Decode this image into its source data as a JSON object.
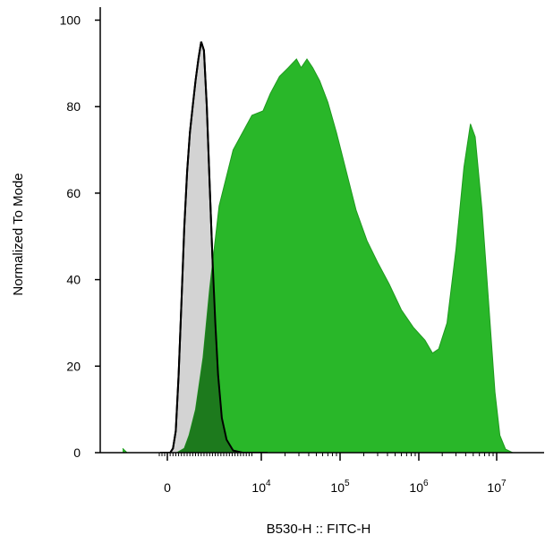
{
  "chart_data": {
    "type": "area",
    "title": "",
    "xlabel": "B530-H :: FITC-H",
    "ylabel": "Normalized To Mode",
    "x_scale": "biexponential",
    "ylim": [
      0,
      103
    ],
    "y_ticks": [
      0,
      20,
      40,
      60,
      80,
      100
    ],
    "x_tick_labels": [
      {
        "value": 0,
        "base": "0",
        "exp": ""
      },
      {
        "value": 10000,
        "base": "10",
        "exp": "4"
      },
      {
        "value": 100000,
        "base": "10",
        "exp": "5"
      },
      {
        "value": 1000000,
        "base": "10",
        "exp": "6"
      },
      {
        "value": 10000000,
        "base": "10",
        "exp": "7"
      }
    ],
    "grid": false,
    "legend": "none",
    "series": [
      {
        "role": "control",
        "fill": "#d3d3d3",
        "stroke": "#000000",
        "points": [
          [
            -800,
            0
          ],
          [
            300,
            0
          ],
          [
            600,
            1
          ],
          [
            900,
            5
          ],
          [
            1200,
            18
          ],
          [
            1500,
            35
          ],
          [
            1800,
            52
          ],
          [
            2100,
            65
          ],
          [
            2400,
            74
          ],
          [
            2700,
            80
          ],
          [
            3000,
            86
          ],
          [
            3300,
            91
          ],
          [
            3600,
            95
          ],
          [
            3900,
            93
          ],
          [
            4200,
            80
          ],
          [
            4500,
            62
          ],
          [
            4800,
            45
          ],
          [
            5100,
            30
          ],
          [
            5400,
            18
          ],
          [
            5800,
            8
          ],
          [
            6300,
            3
          ],
          [
            7000,
            0.5
          ],
          [
            8000,
            0
          ],
          [
            12000,
            0
          ]
        ]
      },
      {
        "role": "stained",
        "fill": "#22b522",
        "stroke": "#1f9a1f",
        "points": [
          [
            -5000,
            1
          ],
          [
            -4500,
            0
          ],
          [
            1000,
            0
          ],
          [
            1800,
            1
          ],
          [
            2300,
            4
          ],
          [
            3000,
            10
          ],
          [
            3800,
            22
          ],
          [
            4500,
            38
          ],
          [
            5500,
            57
          ],
          [
            7000,
            70
          ],
          [
            9000,
            78
          ],
          [
            10500,
            79
          ],
          [
            13000,
            83
          ],
          [
            17000,
            87
          ],
          [
            22000,
            89
          ],
          [
            28000,
            91
          ],
          [
            32000,
            89
          ],
          [
            38000,
            91
          ],
          [
            45000,
            89
          ],
          [
            55000,
            86
          ],
          [
            70000,
            81
          ],
          [
            90000,
            74
          ],
          [
            120000,
            65
          ],
          [
            160000,
            56
          ],
          [
            220000,
            49
          ],
          [
            300000,
            44
          ],
          [
            420000,
            39
          ],
          [
            600000,
            33
          ],
          [
            850000,
            29
          ],
          [
            1200000,
            26
          ],
          [
            1500000,
            23
          ],
          [
            1800000,
            24
          ],
          [
            2300000,
            30
          ],
          [
            3000000,
            47
          ],
          [
            3800000,
            66
          ],
          [
            4600000,
            76
          ],
          [
            5300000,
            73
          ],
          [
            6500000,
            56
          ],
          [
            8000000,
            33
          ],
          [
            9500000,
            14
          ],
          [
            11000000,
            4
          ],
          [
            13000000,
            0.8
          ],
          [
            16000000,
            0
          ]
        ]
      }
    ]
  }
}
